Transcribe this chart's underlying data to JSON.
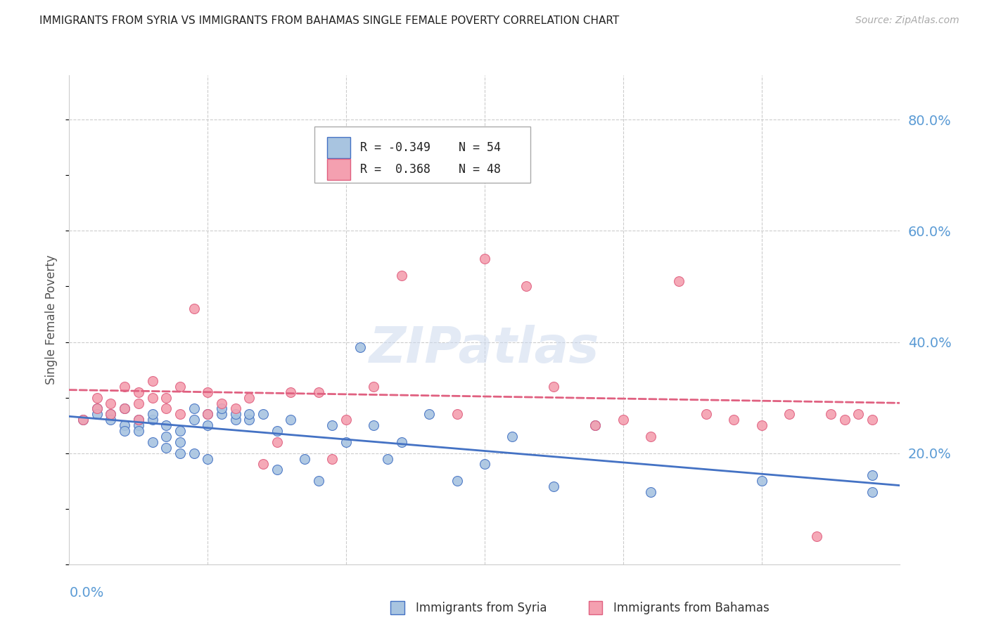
{
  "title": "IMMIGRANTS FROM SYRIA VS IMMIGRANTS FROM BAHAMAS SINGLE FEMALE POVERTY CORRELATION CHART",
  "source": "Source: ZipAtlas.com",
  "ylabel": "Single Female Poverty",
  "right_yticks": [
    "80.0%",
    "60.0%",
    "40.0%",
    "20.0%"
  ],
  "right_ytick_vals": [
    0.8,
    0.6,
    0.4,
    0.2
  ],
  "xlim": [
    0.0,
    0.06
  ],
  "ylim": [
    0.0,
    0.88
  ],
  "legend_r_syria": "-0.349",
  "legend_n_syria": "54",
  "legend_r_bahamas": "0.368",
  "legend_n_bahamas": "48",
  "color_syria": "#a8c4e0",
  "color_bahamas": "#f4a0b0",
  "color_line_syria": "#4472c4",
  "color_line_bahamas": "#e06080",
  "color_axis_text": "#5b9bd5",
  "syria_x": [
    0.001,
    0.002,
    0.002,
    0.003,
    0.003,
    0.004,
    0.004,
    0.004,
    0.005,
    0.005,
    0.005,
    0.006,
    0.006,
    0.006,
    0.007,
    0.007,
    0.007,
    0.008,
    0.008,
    0.008,
    0.009,
    0.009,
    0.009,
    0.01,
    0.01,
    0.01,
    0.011,
    0.011,
    0.012,
    0.012,
    0.013,
    0.013,
    0.014,
    0.015,
    0.015,
    0.016,
    0.017,
    0.018,
    0.019,
    0.02,
    0.021,
    0.022,
    0.023,
    0.024,
    0.026,
    0.028,
    0.03,
    0.032,
    0.035,
    0.038,
    0.042,
    0.05,
    0.058,
    0.058
  ],
  "syria_y": [
    0.26,
    0.28,
    0.27,
    0.27,
    0.26,
    0.25,
    0.28,
    0.24,
    0.25,
    0.26,
    0.24,
    0.26,
    0.27,
    0.22,
    0.25,
    0.23,
    0.21,
    0.24,
    0.22,
    0.2,
    0.28,
    0.26,
    0.2,
    0.27,
    0.25,
    0.19,
    0.27,
    0.28,
    0.26,
    0.27,
    0.26,
    0.27,
    0.27,
    0.24,
    0.17,
    0.26,
    0.19,
    0.15,
    0.25,
    0.22,
    0.39,
    0.25,
    0.19,
    0.22,
    0.27,
    0.15,
    0.18,
    0.23,
    0.14,
    0.25,
    0.13,
    0.15,
    0.13,
    0.16
  ],
  "bahamas_x": [
    0.001,
    0.002,
    0.002,
    0.003,
    0.003,
    0.004,
    0.004,
    0.005,
    0.005,
    0.005,
    0.006,
    0.006,
    0.007,
    0.007,
    0.008,
    0.008,
    0.009,
    0.01,
    0.01,
    0.011,
    0.012,
    0.013,
    0.014,
    0.015,
    0.016,
    0.018,
    0.019,
    0.02,
    0.022,
    0.024,
    0.025,
    0.028,
    0.03,
    0.033,
    0.035,
    0.038,
    0.04,
    0.042,
    0.044,
    0.046,
    0.048,
    0.05,
    0.052,
    0.054,
    0.055,
    0.056,
    0.057,
    0.058
  ],
  "bahamas_y": [
    0.26,
    0.28,
    0.3,
    0.27,
    0.29,
    0.28,
    0.32,
    0.26,
    0.31,
    0.29,
    0.3,
    0.33,
    0.3,
    0.28,
    0.32,
    0.27,
    0.46,
    0.27,
    0.31,
    0.29,
    0.28,
    0.3,
    0.18,
    0.22,
    0.31,
    0.31,
    0.19,
    0.26,
    0.32,
    0.52,
    0.71,
    0.27,
    0.55,
    0.5,
    0.32,
    0.25,
    0.26,
    0.23,
    0.51,
    0.27,
    0.26,
    0.25,
    0.27,
    0.05,
    0.27,
    0.26,
    0.27,
    0.26
  ]
}
